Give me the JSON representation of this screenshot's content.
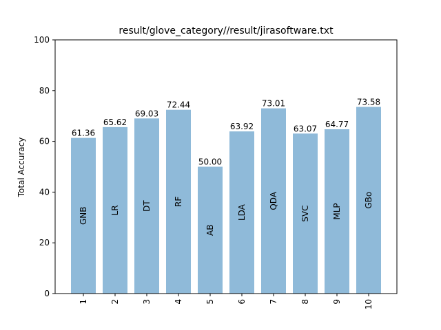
{
  "chart_data": {
    "type": "bar",
    "title": "result/glove_category//result/jirasoftware.txt",
    "xlabel": "",
    "ylabel": "Total Accuracy",
    "ylim": [
      0,
      100
    ],
    "yticks": [
      0,
      20,
      40,
      60,
      80,
      100
    ],
    "categories": [
      "1",
      "2",
      "3",
      "4",
      "5",
      "6",
      "7",
      "8",
      "9",
      "10"
    ],
    "values": [
      61.36,
      65.62,
      69.03,
      72.44,
      50.0,
      63.92,
      73.01,
      63.07,
      64.77,
      73.58
    ],
    "value_labels": [
      "61.36",
      "65.62",
      "69.03",
      "72.44",
      "50.00",
      "63.92",
      "73.01",
      "63.07",
      "64.77",
      "73.58"
    ],
    "bar_names": [
      "GNB",
      "LR",
      "DT",
      "RF",
      "AB",
      "LDA",
      "QDA",
      "SVC",
      "MLP",
      "GBo"
    ],
    "bar_color": "#8fbad9",
    "grid": false,
    "legend": "none"
  }
}
